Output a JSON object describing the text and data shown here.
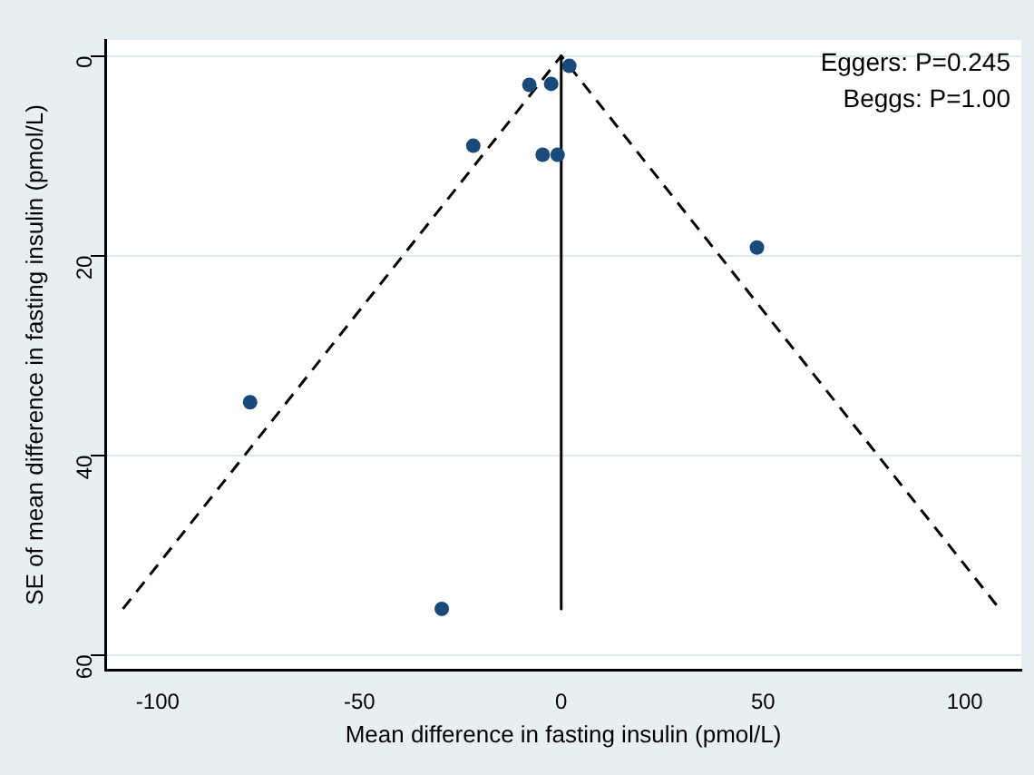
{
  "chart_data": {
    "type": "scatter",
    "xlabel": "Mean difference in fasting insulin (pmol/L)",
    "ylabel": "SE of mean difference in fasting insulin (pmol/L)",
    "annotations": [
      "Eggers: P=0.245",
      "Beggs: P=1.00"
    ],
    "series": [
      {
        "color": "#1a4a7a",
        "marker": "circle",
        "x": [
          2.0,
          -7.9,
          -2.5,
          -21.8,
          -4.6,
          -0.9,
          48.5,
          -77.1,
          -29.6
        ],
        "values": [
          1.0,
          2.9,
          2.8,
          9.0,
          9.9,
          9.9,
          19.2,
          34.7,
          55.4
        ]
      },
      {
        "type": "line",
        "color": "#000000",
        "marker": "none",
        "line_style": "dashed",
        "x": [
          -108.6,
          0,
          108.6
        ],
        "values": [
          55.4,
          0,
          55.4
        ]
      },
      {
        "type": "line",
        "color": "#000000",
        "marker": "none",
        "line_style": "solid",
        "x": [
          0,
          0
        ],
        "values": [
          0,
          55.4
        ]
      }
    ],
    "xlim": [
      -113,
      114
    ],
    "xticks": [
      -100,
      -50,
      0,
      50,
      100
    ],
    "ylim": [
      61.5,
      -1.6
    ],
    "yticks": [
      0,
      20,
      40,
      60
    ],
    "grid": "y"
  }
}
